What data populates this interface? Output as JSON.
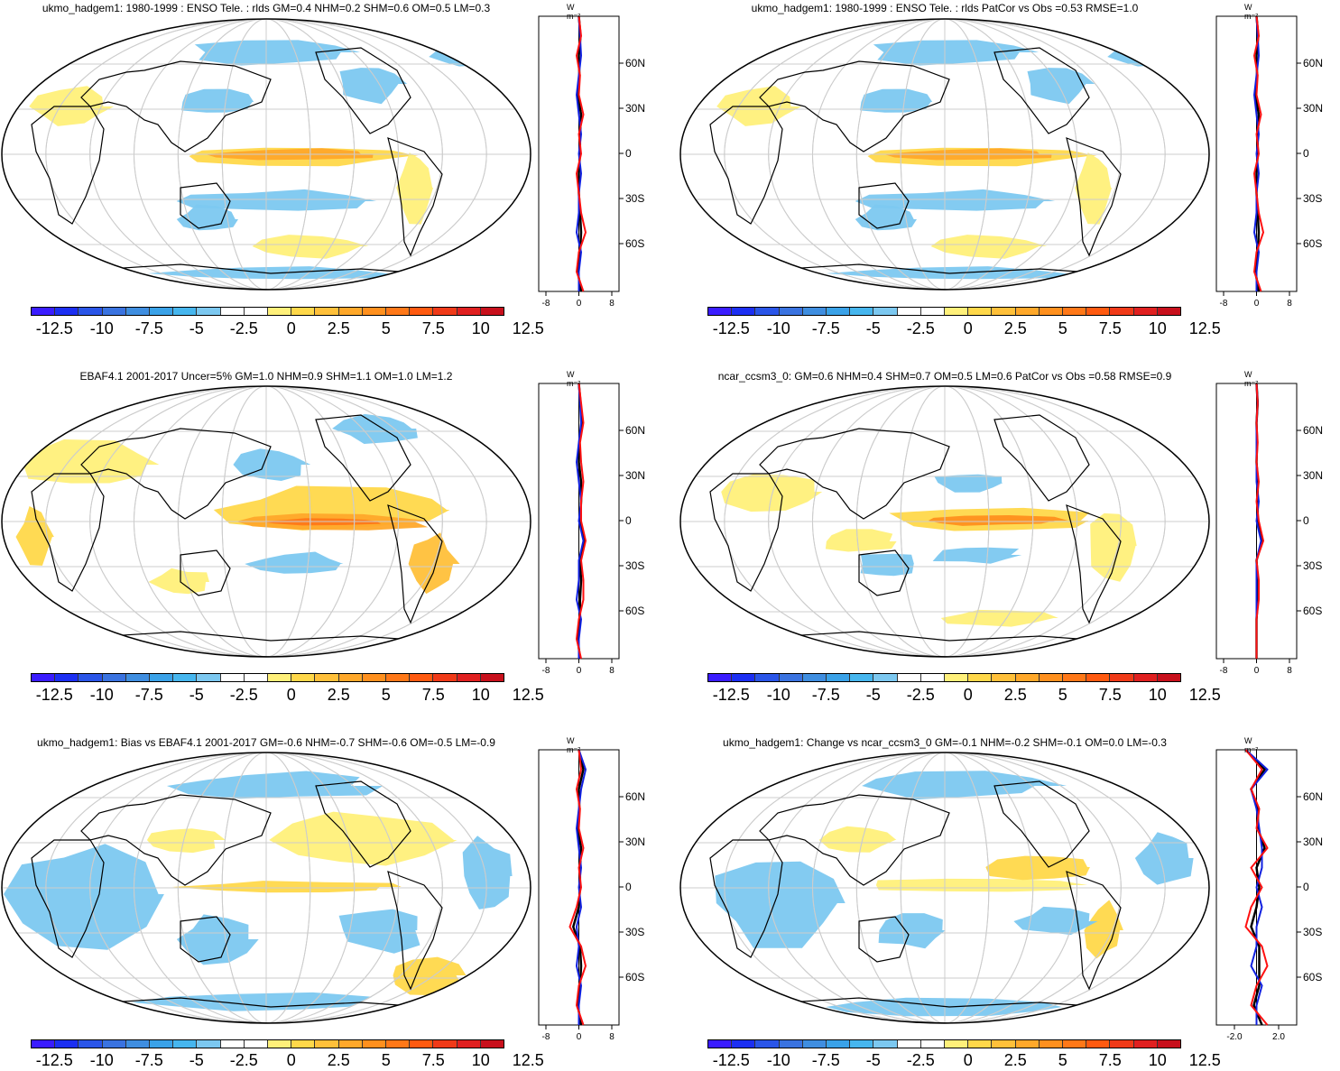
{
  "panels": [
    {
      "id": "p1",
      "title": "ukmo_hadgem1: 1980-1999 : ENSO Tele. : rlds GM=0.4 NHM=0.2 SHM=0.6 OM=0.5 LM=0.3",
      "xticks": [
        "-8",
        "0",
        "8"
      ],
      "units": "W m⁻²",
      "lat_labels": [
        "60N",
        "30N",
        "0",
        "30S",
        "60S"
      ]
    },
    {
      "id": "p2",
      "title": "ukmo_hadgem1: 1980-1999 : ENSO Tele. : rlds PatCor vs Obs =0.53 RMSE=1.0",
      "xticks": [
        "-8",
        "0",
        "8"
      ],
      "units": "W m⁻²",
      "lat_labels": [
        "60N",
        "30N",
        "0",
        "30S",
        "60S"
      ]
    },
    {
      "id": "p3",
      "title": "EBAF4.1 2001-2017 Uncer=5% GM=1.0 NHM=0.9 SHM=1.1 OM=1.0 LM=1.2",
      "xticks": [
        "-8",
        "0",
        "8"
      ],
      "units": "W m⁻²",
      "lat_labels": [
        "60N",
        "30N",
        "0",
        "30S",
        "60S"
      ]
    },
    {
      "id": "p4",
      "title": "ncar_ccsm3_0: GM=0.6 NHM=0.4 SHM=0.7 OM=0.5 LM=0.6 PatCor vs Obs =0.58 RMSE=0.9",
      "xticks": [
        "-8",
        "0",
        "8"
      ],
      "units": "W m⁻²",
      "lat_labels": [
        "60N",
        "30N",
        "0",
        "30S",
        "60S"
      ]
    },
    {
      "id": "p5",
      "title": "ukmo_hadgem1: Bias vs EBAF4.1 2001-2017 GM=-0.6 NHM=-0.7 SHM=-0.6 OM=-0.5 LM=-0.9",
      "xticks": [
        "-8",
        "0",
        "8"
      ],
      "units": "W m⁻²",
      "lat_labels": [
        "60N",
        "30N",
        "0",
        "30S",
        "60S"
      ]
    },
    {
      "id": "p6",
      "title": "ukmo_hadgem1: Change vs ncar_ccsm3_0 GM=-0.1 NHM=-0.2 SHM=-0.1 OM=0.0 LM=-0.3",
      "xticks": [
        "-2.0",
        "2.0"
      ],
      "units": "W m⁻²",
      "lat_labels": [
        "60N",
        "30N",
        "0",
        "30S",
        "60S"
      ]
    }
  ],
  "colorbar": {
    "labels": [
      "-12.5",
      "-10",
      "-7.5",
      "-5",
      "-2.5",
      "0",
      "2.5",
      "5",
      "7.5",
      "10",
      "12.5"
    ],
    "colors": [
      "#3a1cff",
      "#1c2ff2",
      "#2a55e8",
      "#3a73e0",
      "#3f8ee0",
      "#3aa2e8",
      "#46b6ee",
      "#7cc8f0",
      "#ffffff",
      "#ffffff",
      "#fff07a",
      "#ffd84a",
      "#ffc03a",
      "#ffa82a",
      "#ff901e",
      "#ff7818",
      "#ff5a10",
      "#f03a18",
      "#e02020",
      "#c8101c"
    ]
  },
  "colors": {
    "ocean": "#ffffff",
    "coast": "#000000",
    "grid": "#cccccc",
    "series_red": "#ff1010",
    "series_blue": "#1020e0",
    "series_black": "#000000"
  }
}
